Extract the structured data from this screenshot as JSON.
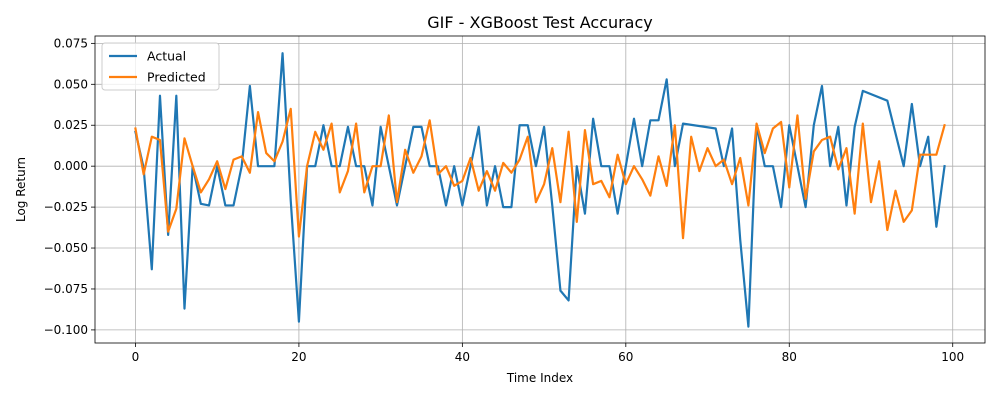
{
  "chart_data": {
    "type": "line",
    "title": "GIF - XGBoost Test Accuracy",
    "xlabel": "Time Index",
    "ylabel": "Log Return",
    "xlim": [
      -4.95,
      103.95
    ],
    "ylim": [
      -0.108,
      0.0795
    ],
    "xticks": [
      0,
      20,
      40,
      60,
      80,
      100
    ],
    "yticks": [
      -0.1,
      -0.075,
      -0.05,
      -0.025,
      0.0,
      0.025,
      0.05,
      0.075
    ],
    "ytick_labels": [
      "−0.100",
      "−0.075",
      "−0.050",
      "−0.025",
      "0.000",
      "0.025",
      "0.050",
      "0.075"
    ],
    "grid": true,
    "legend_position": "top-left",
    "series": [
      {
        "name": "Actual",
        "color": "#1f77b4",
        "x": [
          0,
          1,
          2,
          3,
          4,
          5,
          6,
          7,
          8,
          9,
          10,
          11,
          12,
          13,
          14,
          15,
          16,
          17,
          18,
          19,
          20,
          21,
          22,
          23,
          24,
          25,
          26,
          27,
          28,
          29,
          30,
          31,
          32,
          33,
          34,
          35,
          36,
          37,
          38,
          39,
          40,
          41,
          42,
          43,
          44,
          45,
          46,
          47,
          48,
          49,
          50,
          51,
          52,
          53,
          54,
          55,
          56,
          57,
          58,
          59,
          60,
          61,
          62,
          63,
          64,
          65,
          66,
          67,
          71,
          72,
          73,
          74,
          75,
          76,
          77,
          78,
          79,
          80,
          81,
          82,
          83,
          84,
          85,
          86,
          87,
          88,
          89,
          92,
          94,
          95,
          96,
          97,
          98,
          99
        ],
        "values": [
          0.021,
          -0.001,
          -0.063,
          0.043,
          -0.042,
          0.043,
          -0.087,
          0.0,
          -0.023,
          -0.024,
          0.0,
          -0.024,
          -0.024,
          0.0,
          0.049,
          0.0,
          0.0,
          0.0,
          0.069,
          -0.021,
          -0.095,
          0.0,
          0.0,
          0.025,
          0.0,
          0.0,
          0.024,
          0.0,
          0.0,
          -0.024,
          0.024,
          0.0,
          -0.024,
          0.0,
          0.024,
          0.024,
          0.0,
          0.0,
          -0.024,
          0.0,
          -0.024,
          0.0,
          0.024,
          -0.024,
          0.0,
          -0.025,
          -0.025,
          0.025,
          0.025,
          0.0,
          0.024,
          -0.024,
          -0.076,
          -0.082,
          0.0,
          -0.029,
          0.029,
          0.0,
          0.0,
          -0.029,
          0.0,
          0.029,
          0.0,
          0.028,
          0.028,
          0.053,
          0.0,
          0.026,
          0.023,
          0.0,
          0.023,
          -0.045,
          -0.098,
          0.025,
          0.0,
          0.0,
          -0.025,
          0.025,
          0.0,
          -0.025,
          0.025,
          0.049,
          0.0,
          0.024,
          -0.024,
          0.024,
          0.046,
          0.04,
          0.0,
          0.038,
          0.0,
          0.018,
          -0.037,
          0.0
        ]
      },
      {
        "name": "Predicted",
        "color": "#ff7f0e",
        "x": [
          0,
          1,
          2,
          3,
          4,
          5,
          6,
          7,
          8,
          9,
          10,
          11,
          12,
          13,
          14,
          15,
          16,
          17,
          18,
          19,
          20,
          21,
          22,
          23,
          24,
          25,
          26,
          27,
          28,
          29,
          30,
          31,
          32,
          33,
          34,
          35,
          36,
          37,
          38,
          39,
          40,
          41,
          42,
          43,
          44,
          45,
          46,
          47,
          48,
          49,
          50,
          51,
          52,
          53,
          54,
          55,
          56,
          57,
          58,
          59,
          60,
          61,
          62,
          63,
          64,
          65,
          66,
          67,
          68,
          69,
          70,
          71,
          72,
          73,
          74,
          75,
          76,
          77,
          78,
          79,
          80,
          81,
          82,
          83,
          84,
          85,
          86,
          87,
          88,
          89,
          90,
          91,
          92,
          93,
          94,
          95,
          96,
          97,
          98,
          99
        ],
        "values": [
          0.023,
          -0.005,
          0.018,
          0.016,
          -0.04,
          -0.026,
          0.017,
          0.0,
          -0.016,
          -0.008,
          0.003,
          -0.014,
          0.004,
          0.006,
          -0.004,
          0.033,
          0.008,
          0.003,
          0.015,
          0.035,
          -0.043,
          0.0,
          0.021,
          0.01,
          0.026,
          -0.016,
          -0.003,
          0.026,
          -0.016,
          0.0,
          0.0,
          0.031,
          -0.022,
          0.01,
          -0.004,
          0.006,
          0.028,
          -0.005,
          0.0,
          -0.012,
          -0.009,
          0.005,
          -0.015,
          -0.003,
          -0.015,
          0.002,
          -0.004,
          0.004,
          0.018,
          -0.022,
          -0.011,
          0.011,
          -0.022,
          0.021,
          -0.034,
          0.022,
          -0.011,
          -0.009,
          -0.019,
          0.007,
          -0.011,
          0.0,
          -0.008,
          -0.018,
          0.006,
          -0.012,
          0.025,
          -0.044,
          0.018,
          -0.003,
          0.011,
          0.0,
          0.004,
          -0.011,
          0.005,
          -0.024,
          0.026,
          0.008,
          0.023,
          0.027,
          -0.013,
          0.031,
          -0.02,
          0.009,
          0.016,
          0.018,
          -0.002,
          0.011,
          -0.029,
          0.026,
          -0.022,
          0.003,
          -0.039,
          -0.015,
          -0.034,
          -0.027,
          0.007,
          0.007,
          0.007,
          0.025
        ]
      }
    ]
  }
}
